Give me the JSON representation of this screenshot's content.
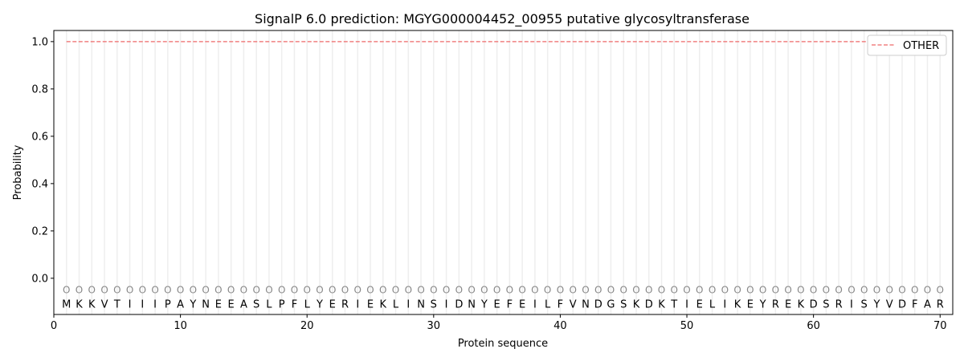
{
  "chart_data": {
    "type": "line",
    "title": "SignalP 6.0 prediction: MGYG000004452_00955 putative glycosyltransferase",
    "xlabel": "Protein sequence",
    "ylabel": "Probability",
    "xlim": [
      0,
      71
    ],
    "ylim": [
      -0.153,
      1.047
    ],
    "xticks": [
      0,
      10,
      20,
      30,
      40,
      50,
      60,
      70
    ],
    "yticks": [
      0.0,
      0.2,
      0.4,
      0.6,
      0.8,
      1.0
    ],
    "ytick_labels": [
      "0.0",
      "0.2",
      "0.4",
      "0.6",
      "0.8",
      "1.0"
    ],
    "legend_position": "top-right",
    "series": [
      {
        "name": "OTHER",
        "color": "#f08080",
        "style": "dashed",
        "x_range": [
          1,
          70
        ],
        "value": 1.0
      }
    ],
    "sequence": "MKKVTIIIPAYNEEASLPFLYERIEKLINSIDNYEFEILFVNDGSKDKTIELIKEYREKDSRISYVDFAR",
    "per_residue_label": "O"
  }
}
